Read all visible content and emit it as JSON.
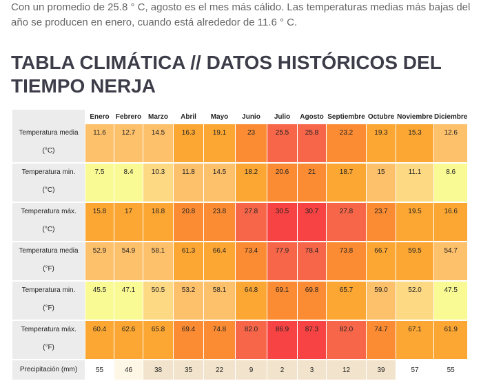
{
  "intro": {
    "text": "Con un promedio de 25.8 ° C, agosto es el mes más cálido. Las temperaturas medias más bajas del año se producen en enero, cuando está alrededor de 11.6 ° C."
  },
  "heading": {
    "title": "TABLA CLIMÁTICA // DATOS HISTÓRICOS DEL TIEMPO NERJA"
  },
  "table": {
    "months": [
      "Enero",
      "Febrero",
      "Marzo",
      "Abril",
      "Mayo",
      "Junio",
      "Julio",
      "Agosto",
      "Septiembre",
      "Octubre",
      "Noviembre",
      "Diciembre"
    ],
    "rows": [
      {
        "label1": "Temperatura media",
        "label2": "(°C)",
        "values": [
          "11.6",
          "12.7",
          "14.5",
          "16.3",
          "19.1",
          "23",
          "25.5",
          "25.8",
          "23.2",
          "19.3",
          "15.3",
          "12.6"
        ],
        "colors": [
          "#fdc06b",
          "#fdc06b",
          "#fdc06b",
          "#fca733",
          "#fca733",
          "#fc8c33",
          "#f8664a",
          "#f8664a",
          "#fc8c33",
          "#fca733",
          "#fca733",
          "#fdc06b"
        ]
      },
      {
        "label1": "Temperatura min.",
        "label2": "(°C)",
        "values": [
          "7.5",
          "8.4",
          "10.3",
          "11.8",
          "14.5",
          "18.2",
          "20.6",
          "21",
          "18.7",
          "15",
          "11.1",
          "8.6"
        ],
        "colors": [
          "#fafa95",
          "#fafa95",
          "#fdd983",
          "#fdc06b",
          "#fdc06b",
          "#fca733",
          "#fc8c33",
          "#fc8c33",
          "#fca733",
          "#fdc06b",
          "#fdd983",
          "#fafa95"
        ]
      },
      {
        "label1": "Temperatura máx.",
        "label2": "(°C)",
        "values": [
          "15.8",
          "17",
          "18.8",
          "20.8",
          "23.8",
          "27.8",
          "30.5",
          "30.7",
          "27.8",
          "23.7",
          "19.5",
          "16.6"
        ],
        "colors": [
          "#fca733",
          "#fca733",
          "#fca733",
          "#fc8c33",
          "#fc8c33",
          "#f8664a",
          "#f74343",
          "#f74343",
          "#f8664a",
          "#fc8c33",
          "#fca733",
          "#fca733"
        ]
      },
      {
        "label1": "Temperatura media",
        "label2": "(°F)",
        "values": [
          "52.9",
          "54.9",
          "58.1",
          "61.3",
          "66.4",
          "73.4",
          "77.9",
          "78.4",
          "73.8",
          "66.7",
          "59.5",
          "54.7"
        ],
        "colors": [
          "#fdc06b",
          "#fdc06b",
          "#fdc06b",
          "#fca733",
          "#fca733",
          "#fc8c33",
          "#f8664a",
          "#f8664a",
          "#fc8c33",
          "#fca733",
          "#fca733",
          "#fdc06b"
        ]
      },
      {
        "label1": "Temperatura min.",
        "label2": "(°F)",
        "values": [
          "45.5",
          "47.1",
          "50.5",
          "53.2",
          "58.1",
          "64.8",
          "69.1",
          "69.8",
          "65.7",
          "59.0",
          "52.0",
          "47.5"
        ],
        "colors": [
          "#fafa95",
          "#fafa95",
          "#fdd983",
          "#fdc06b",
          "#fdc06b",
          "#fca733",
          "#fc8c33",
          "#fc8c33",
          "#fca733",
          "#fdc06b",
          "#fdd983",
          "#fafa95"
        ]
      },
      {
        "label1": "Temperatura máx.",
        "label2": "(°F)",
        "values": [
          "60.4",
          "62.6",
          "65.8",
          "69.4",
          "74.8",
          "82.0",
          "86.9",
          "87.3",
          "82.0",
          "74.7",
          "67.1",
          "61.9"
        ],
        "colors": [
          "#fca733",
          "#fca733",
          "#fca733",
          "#fc8c33",
          "#fc8c33",
          "#f8664a",
          "#f74343",
          "#f74343",
          "#f8664a",
          "#fc8c33",
          "#fca733",
          "#fca733"
        ]
      }
    ],
    "precip": {
      "label": "Precipitación (mm)",
      "values": [
        "55",
        "46",
        "38",
        "35",
        "22",
        "9",
        "2",
        "3",
        "12",
        "39",
        "57",
        "55"
      ],
      "colors": [
        "#ffffff",
        "#fff7e6",
        "#f2e4cc",
        "#f2e4cc",
        "#f2e4cc",
        "#f2e4cc",
        "#f2e4cc",
        "#f2e4cc",
        "#f2e4cc",
        "#f2e4cc",
        "#ffffff",
        "#ffffff"
      ]
    }
  }
}
